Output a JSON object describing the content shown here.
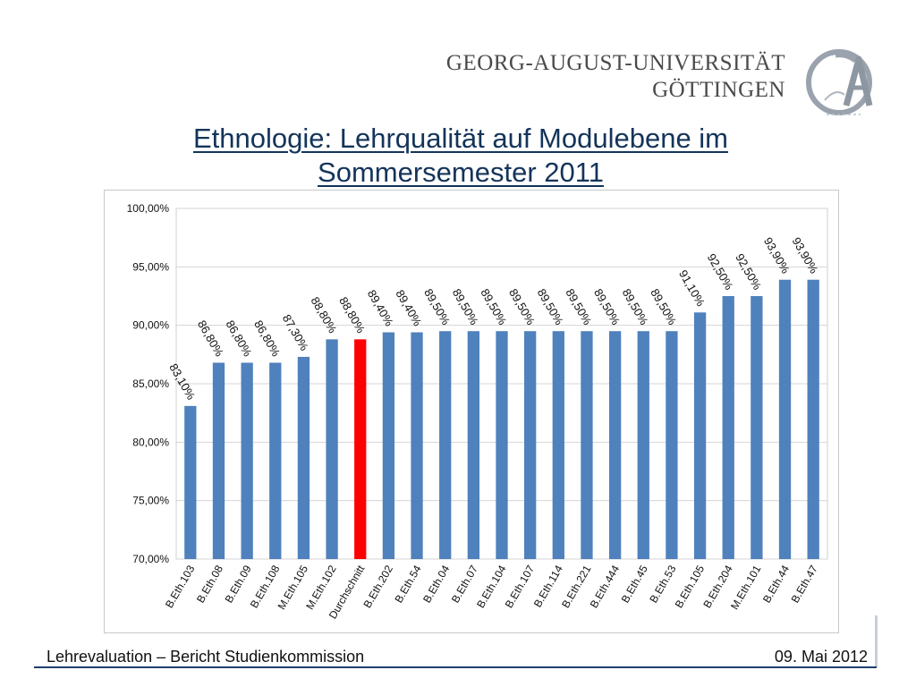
{
  "header": {
    "university_line1": "GEORG-AUGUST-UNIVERSITÄT",
    "university_line2": "GÖTTINGEN"
  },
  "title": "Ethnologie: Lehrqualität auf Modulebene im Sommersemester 2011",
  "footer": {
    "left": "Lehrevaluation – Bericht Studienkommission",
    "right": "09. Mai 2012"
  },
  "colors": {
    "bar": "#4f81bd",
    "highlight": "#ff0000",
    "title": "#14345a",
    "footer_line": "#1c3f6b"
  },
  "chart_data": {
    "type": "bar",
    "title": "",
    "xlabel": "",
    "ylabel": "",
    "ylim": [
      0.7,
      1.0
    ],
    "yticks": [
      "70,00%",
      "75,00%",
      "80,00%",
      "85,00%",
      "90,00%",
      "95,00%",
      "100,00%"
    ],
    "grid": true,
    "categories": [
      "B.Eth.103",
      "B.Eth.08",
      "B.Eth.09",
      "B.Eth.108",
      "M.Eth.105",
      "M.Eth.102",
      "Durchschnitt",
      "B.Eth.202",
      "B.Eth.54",
      "B.Eth.04",
      "B.Eth.07",
      "B.Eth.104",
      "B.Eth.107",
      "B.Eth.114",
      "B.Eth.221",
      "B.Eth.444",
      "B.Eth.45",
      "B.Eth.53",
      "B.Eth.105",
      "B.Eth.204",
      "M.Eth.101",
      "B.Eth.44",
      "B.Eth.47"
    ],
    "values": [
      0.831,
      0.868,
      0.868,
      0.868,
      0.873,
      0.888,
      0.888,
      0.894,
      0.894,
      0.895,
      0.895,
      0.895,
      0.895,
      0.895,
      0.895,
      0.895,
      0.895,
      0.895,
      0.911,
      0.925,
      0.925,
      0.939,
      0.939
    ],
    "data_labels": [
      "83,10%",
      "86,80%",
      "86,80%",
      "86,80%",
      "87,30%",
      "88,80%",
      "88,80%",
      "89,40%",
      "89,40%",
      "89,50%",
      "89,50%",
      "89,50%",
      "89,50%",
      "89,50%",
      "89,50%",
      "89,50%",
      "89,50%",
      "89,50%",
      "91,10%",
      "92,50%",
      "92,50%",
      "93,90%",
      "93,90%"
    ],
    "highlight_category": "Durchschnitt"
  }
}
